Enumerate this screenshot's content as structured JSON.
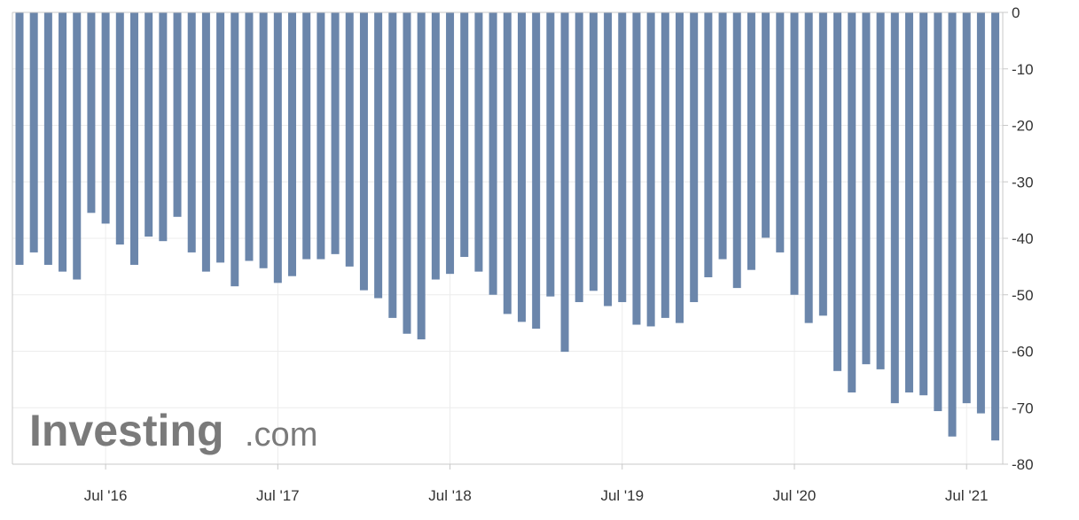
{
  "chart_data": {
    "type": "bar",
    "title": "",
    "xlabel": "",
    "ylabel": "",
    "ylim": [
      -80,
      0
    ],
    "y_ticks": [
      0,
      -10,
      -20,
      -30,
      -40,
      -50,
      -60,
      -70,
      -80
    ],
    "y_tick_labels": [
      "0",
      "-10",
      "-20",
      "-30",
      "-40",
      "-50",
      "-60",
      "-70",
      "-80"
    ],
    "x_tick_labels": [
      {
        "index": 6,
        "label": "Jul '16"
      },
      {
        "index": 18,
        "label": "Jul '17"
      },
      {
        "index": 30,
        "label": "Jul '18"
      },
      {
        "index": 42,
        "label": "Jul '19"
      },
      {
        "index": 54,
        "label": "Jul '20"
      },
      {
        "index": 66,
        "label": "Jul '21"
      }
    ],
    "grid": true,
    "legend": "none",
    "bar_color": "#6b86ab",
    "series": [
      {
        "values": [
          -44.7,
          -42.5,
          -44.7,
          -45.9,
          -47.3,
          -35.5,
          -37.4,
          -41.1,
          -44.7,
          -39.7,
          -40.5,
          -36.2,
          -42.5,
          -45.9,
          -44.3,
          -48.5,
          -44.0,
          -45.3,
          -47.9,
          -46.7,
          -43.7,
          -43.7,
          -42.8,
          -45.0,
          -49.2,
          -50.6,
          -54.1,
          -56.9,
          -57.9,
          -47.3,
          -46.3,
          -43.3,
          -45.9,
          -50.0,
          -53.4,
          -54.8,
          -56.0,
          -50.3,
          -60.1,
          -51.3,
          -49.3,
          -52.0,
          -51.3,
          -55.3,
          -55.6,
          -54.1,
          -55.0,
          -51.3,
          -46.9,
          -43.7,
          -48.8,
          -45.6,
          -39.9,
          -42.5,
          -50.0,
          -55.0,
          -53.7,
          -63.5,
          -67.3,
          -62.3,
          -63.2,
          -69.2,
          -67.3,
          -67.8,
          -70.6,
          -75.1,
          -69.2,
          -71.0,
          -75.8
        ]
      }
    ]
  },
  "watermark": {
    "brand": "Investing",
    "suffix": ".com"
  }
}
